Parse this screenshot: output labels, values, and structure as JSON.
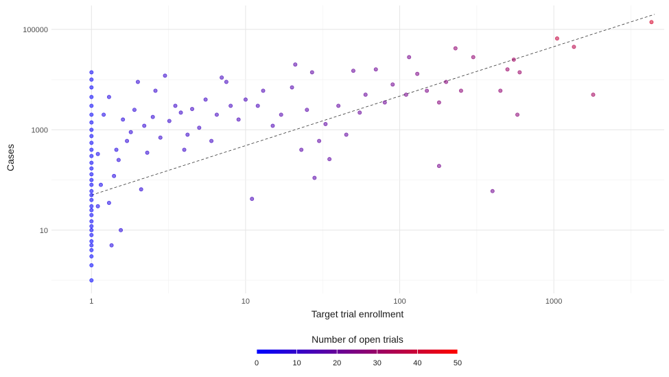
{
  "chart_data": {
    "type": "scatter",
    "title": "",
    "xlabel": "Target trial enrollment",
    "ylabel": "Cases",
    "x_scale": "log10",
    "y_scale": "log10",
    "xlim": [
      0.55,
      5200
    ],
    "ylim": [
      0.55,
      300000
    ],
    "x_ticks": [
      1,
      10,
      100,
      1000
    ],
    "x_tick_labels": [
      "1",
      "10",
      "100",
      "1000"
    ],
    "y_ticks": [
      10,
      1000,
      100000
    ],
    "y_tick_labels": [
      "10",
      "1000",
      "100000"
    ],
    "grid": true,
    "trend_line": {
      "style": "dashed",
      "from": [
        1,
        50
      ],
      "to": [
        4500,
        200000
      ]
    },
    "color_legend": {
      "title": "Number of open trials",
      "placement": "bottom",
      "ticks": [
        "0",
        "10",
        "20",
        "30",
        "40",
        "50"
      ],
      "range": [
        0,
        50
      ],
      "low_color": "#0000ff",
      "high_color": "#ff0000"
    },
    "series": [
      {
        "points": [
          {
            "x": 1,
            "y": 1,
            "t": 0
          },
          {
            "x": 1,
            "y": 2,
            "t": 0
          },
          {
            "x": 1,
            "y": 3,
            "t": 0
          },
          {
            "x": 1,
            "y": 4,
            "t": 0
          },
          {
            "x": 1,
            "y": 5,
            "t": 1
          },
          {
            "x": 1,
            "y": 6,
            "t": 0
          },
          {
            "x": 1,
            "y": 8,
            "t": 1
          },
          {
            "x": 1,
            "y": 10,
            "t": 1
          },
          {
            "x": 1,
            "y": 12,
            "t": 1
          },
          {
            "x": 1,
            "y": 15,
            "t": 1
          },
          {
            "x": 1,
            "y": 20,
            "t": 1
          },
          {
            "x": 1,
            "y": 25,
            "t": 1
          },
          {
            "x": 1,
            "y": 30,
            "t": 1
          },
          {
            "x": 1,
            "y": 40,
            "t": 1
          },
          {
            "x": 1,
            "y": 50,
            "t": 1
          },
          {
            "x": 1,
            "y": 60,
            "t": 1
          },
          {
            "x": 1,
            "y": 80,
            "t": 1
          },
          {
            "x": 1,
            "y": 100,
            "t": 1
          },
          {
            "x": 1,
            "y": 130,
            "t": 1
          },
          {
            "x": 1,
            "y": 170,
            "t": 1
          },
          {
            "x": 1,
            "y": 220,
            "t": 1
          },
          {
            "x": 1,
            "y": 300,
            "t": 1
          },
          {
            "x": 1,
            "y": 400,
            "t": 1
          },
          {
            "x": 1,
            "y": 550,
            "t": 1
          },
          {
            "x": 1,
            "y": 750,
            "t": 1
          },
          {
            "x": 1,
            "y": 1000,
            "t": 1
          },
          {
            "x": 1,
            "y": 1400,
            "t": 1
          },
          {
            "x": 1,
            "y": 2000,
            "t": 1
          },
          {
            "x": 1,
            "y": 3000,
            "t": 1
          },
          {
            "x": 1,
            "y": 4500,
            "t": 1
          },
          {
            "x": 1,
            "y": 7000,
            "t": 1
          },
          {
            "x": 1,
            "y": 10000,
            "t": 2
          },
          {
            "x": 1,
            "y": 14000,
            "t": 2
          },
          {
            "x": 1.1,
            "y": 30,
            "t": 4
          },
          {
            "x": 1.1,
            "y": 330,
            "t": 4
          },
          {
            "x": 1.15,
            "y": 80,
            "t": 4
          },
          {
            "x": 1.2,
            "y": 2000,
            "t": 5
          },
          {
            "x": 1.3,
            "y": 4500,
            "t": 6
          },
          {
            "x": 1.3,
            "y": 35,
            "t": 5
          },
          {
            "x": 1.35,
            "y": 5,
            "t": 6
          },
          {
            "x": 1.4,
            "y": 120,
            "t": 6
          },
          {
            "x": 1.45,
            "y": 400,
            "t": 6
          },
          {
            "x": 1.5,
            "y": 250,
            "t": 7
          },
          {
            "x": 1.55,
            "y": 10,
            "t": 7
          },
          {
            "x": 1.6,
            "y": 1600,
            "t": 7
          },
          {
            "x": 1.7,
            "y": 600,
            "t": 8
          },
          {
            "x": 1.8,
            "y": 900,
            "t": 8
          },
          {
            "x": 1.9,
            "y": 2500,
            "t": 8
          },
          {
            "x": 2,
            "y": 9000,
            "t": 9
          },
          {
            "x": 2.1,
            "y": 65,
            "t": 8
          },
          {
            "x": 2.2,
            "y": 1200,
            "t": 9
          },
          {
            "x": 2.3,
            "y": 350,
            "t": 9
          },
          {
            "x": 2.5,
            "y": 1800,
            "t": 9
          },
          {
            "x": 2.6,
            "y": 6000,
            "t": 10
          },
          {
            "x": 2.8,
            "y": 700,
            "t": 10
          },
          {
            "x": 3,
            "y": 12000,
            "t": 10
          },
          {
            "x": 3.2,
            "y": 1500,
            "t": 10
          },
          {
            "x": 3.5,
            "y": 3000,
            "t": 11
          },
          {
            "x": 3.8,
            "y": 2200,
            "t": 11
          },
          {
            "x": 4,
            "y": 400,
            "t": 11
          },
          {
            "x": 4.2,
            "y": 800,
            "t": 11
          },
          {
            "x": 4.5,
            "y": 2600,
            "t": 12
          },
          {
            "x": 5,
            "y": 1100,
            "t": 12
          },
          {
            "x": 5.5,
            "y": 4000,
            "t": 12
          },
          {
            "x": 6,
            "y": 600,
            "t": 12
          },
          {
            "x": 6.5,
            "y": 2000,
            "t": 13
          },
          {
            "x": 7,
            "y": 11000,
            "t": 13
          },
          {
            "x": 7.5,
            "y": 9000,
            "t": 13
          },
          {
            "x": 8,
            "y": 3000,
            "t": 13
          },
          {
            "x": 9,
            "y": 1600,
            "t": 14
          },
          {
            "x": 10,
            "y": 4000,
            "t": 14
          },
          {
            "x": 11,
            "y": 42,
            "t": 14
          },
          {
            "x": 12,
            "y": 3000,
            "t": 14
          },
          {
            "x": 13,
            "y": 6000,
            "t": 15
          },
          {
            "x": 15,
            "y": 1200,
            "t": 15
          },
          {
            "x": 17,
            "y": 2000,
            "t": 16
          },
          {
            "x": 20,
            "y": 7000,
            "t": 16
          },
          {
            "x": 21,
            "y": 20000,
            "t": 17
          },
          {
            "x": 23,
            "y": 400,
            "t": 17
          },
          {
            "x": 25,
            "y": 2500,
            "t": 17
          },
          {
            "x": 27,
            "y": 14000,
            "t": 18
          },
          {
            "x": 28,
            "y": 110,
            "t": 17
          },
          {
            "x": 30,
            "y": 600,
            "t": 18
          },
          {
            "x": 33,
            "y": 1300,
            "t": 18
          },
          {
            "x": 35,
            "y": 260,
            "t": 18
          },
          {
            "x": 40,
            "y": 3000,
            "t": 19
          },
          {
            "x": 45,
            "y": 800,
            "t": 19
          },
          {
            "x": 50,
            "y": 15000,
            "t": 20
          },
          {
            "x": 55,
            "y": 2200,
            "t": 20
          },
          {
            "x": 60,
            "y": 5000,
            "t": 20
          },
          {
            "x": 70,
            "y": 16000,
            "t": 21
          },
          {
            "x": 80,
            "y": 3500,
            "t": 21
          },
          {
            "x": 90,
            "y": 8000,
            "t": 22
          },
          {
            "x": 110,
            "y": 5000,
            "t": 23
          },
          {
            "x": 115,
            "y": 28000,
            "t": 23
          },
          {
            "x": 130,
            "y": 13000,
            "t": 24
          },
          {
            "x": 150,
            "y": 6000,
            "t": 24
          },
          {
            "x": 180,
            "y": 190,
            "t": 23
          },
          {
            "x": 180,
            "y": 3500,
            "t": 26
          },
          {
            "x": 200,
            "y": 9000,
            "t": 26
          },
          {
            "x": 230,
            "y": 42000,
            "t": 28
          },
          {
            "x": 250,
            "y": 6000,
            "t": 27
          },
          {
            "x": 300,
            "y": 28000,
            "t": 28
          },
          {
            "x": 400,
            "y": 60,
            "t": 22
          },
          {
            "x": 450,
            "y": 6000,
            "t": 28
          },
          {
            "x": 500,
            "y": 16000,
            "t": 30
          },
          {
            "x": 550,
            "y": 25000,
            "t": 31
          },
          {
            "x": 580,
            "y": 2000,
            "t": 27
          },
          {
            "x": 600,
            "y": 14000,
            "t": 30
          },
          {
            "x": 1050,
            "y": 66000,
            "t": 38
          },
          {
            "x": 1350,
            "y": 45000,
            "t": 36
          },
          {
            "x": 1800,
            "y": 5000,
            "t": 32
          },
          {
            "x": 4300,
            "y": 140000,
            "t": 42
          }
        ]
      }
    ]
  }
}
